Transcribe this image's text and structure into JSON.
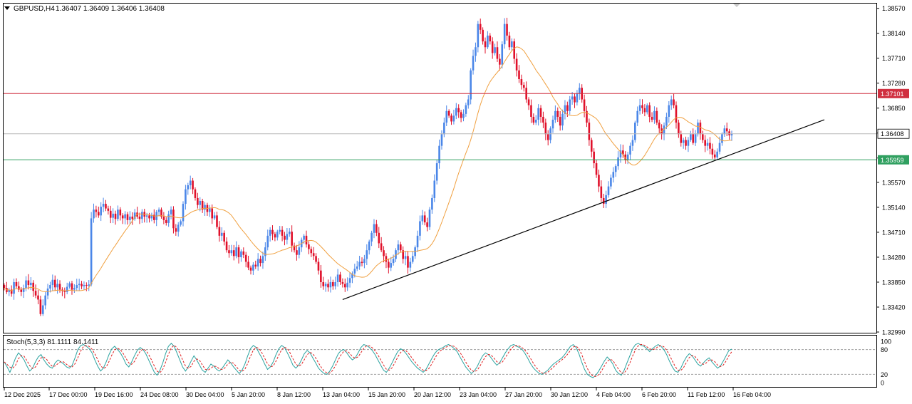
{
  "header": {
    "symbol_label": "GBPUSD,H4",
    "ohlc_text": "1.36407 1.36409 1.36406 1.36408"
  },
  "stoch": {
    "label": "Stoch(5,3,3) 81.1111 84.1411",
    "levels": [
      "100",
      "80",
      "20",
      "0"
    ]
  },
  "colors": {
    "up": "#4a86e8",
    "down": "#e0102a",
    "ma": "#f0a040",
    "resistance": "#d03040",
    "support": "#30a060",
    "current": "#b8b8b8",
    "trendline": "#000000",
    "stoch_main": "#2ba3a0",
    "stoch_signal": "#e02020"
  },
  "chart_data": {
    "type": "candlestick",
    "ylim": [
      1.3299,
      1.3864
    ],
    "y_ticks": [
      "1.38570",
      "1.38140",
      "1.37710",
      "1.37280",
      "1.36850",
      "1.36420",
      "1.35990",
      "1.35570",
      "1.35140",
      "1.34710",
      "1.34280",
      "1.33850",
      "1.33420",
      "1.32990"
    ],
    "x_ticks": [
      "12 Dec 2025",
      "17 Dec 00:00",
      "19 Dec 16:00",
      "24 Dec 08:00",
      "30 Dec 04:00",
      "5 Jan 20:00",
      "8 Jan 12:00",
      "13 Jan 04:00",
      "15 Jan 20:00",
      "20 Jan 12:00",
      "23 Jan 04:00",
      "27 Jan 20:00",
      "30 Jan 12:00",
      "4 Feb 04:00",
      "6 Feb 20:00",
      "11 Feb 12:00",
      "16 Feb 04:00"
    ],
    "horizontal_levels": [
      {
        "kind": "resistance",
        "value": 1.37101,
        "label": "1.37101"
      },
      {
        "kind": "current",
        "value": 1.36408,
        "label": "1.36408"
      },
      {
        "kind": "support",
        "value": 1.35959,
        "label": "1.35959"
      }
    ],
    "trendline": {
      "from": {
        "date": "15 Jan 20:00",
        "price": 1.3355
      },
      "to": {
        "date": "19 Feb",
        "price": 1.3665
      }
    },
    "closes": [
      1.3375,
      1.3368,
      1.3372,
      1.3365,
      1.3385,
      1.3378,
      1.3372,
      1.3368,
      1.3375,
      1.3388,
      1.338,
      1.3384,
      1.337,
      1.3362,
      1.3355,
      1.333,
      1.3345,
      1.3362,
      1.3374,
      1.338,
      1.3389,
      1.3376,
      1.3382,
      1.3372,
      1.337,
      1.3368,
      1.3377,
      1.3383,
      1.3372,
      1.3375,
      1.338,
      1.3382,
      1.3378,
      1.338,
      1.3379,
      1.3381,
      1.3495,
      1.351,
      1.3506,
      1.35,
      1.3515,
      1.352,
      1.3512,
      1.3508,
      1.3496,
      1.3503,
      1.3494,
      1.351,
      1.35,
      1.3495,
      1.3502,
      1.3492,
      1.3498,
      1.3494,
      1.3505,
      1.3498,
      1.3494,
      1.3506,
      1.3498,
      1.35,
      1.3495,
      1.3501,
      1.3492,
      1.3506,
      1.351,
      1.3498,
      1.3492,
      1.3487,
      1.3502,
      1.351,
      1.3478,
      1.3472,
      1.3484,
      1.349,
      1.352,
      1.3545,
      1.3552,
      1.356,
      1.3545,
      1.353,
      1.3518,
      1.3525,
      1.351,
      1.3518,
      1.3506,
      1.3512,
      1.3495,
      1.35,
      1.348,
      1.3465,
      1.347,
      1.3455,
      1.344,
      1.3435,
      1.344,
      1.343,
      1.3445,
      1.3428,
      1.3438,
      1.3432,
      1.342,
      1.341,
      1.3405,
      1.3415,
      1.3412,
      1.3425,
      1.3418,
      1.343,
      1.3445,
      1.3465,
      1.3475,
      1.3468,
      1.3462,
      1.3472,
      1.3475,
      1.3465,
      1.3458,
      1.3468,
      1.3472,
      1.3448,
      1.344,
      1.3432,
      1.3445,
      1.3458,
      1.3465,
      1.345,
      1.3442,
      1.3435,
      1.343,
      1.342,
      1.3405,
      1.3385,
      1.3378,
      1.3382,
      1.3376,
      1.3385,
      1.3378,
      1.3385,
      1.3398,
      1.3385,
      1.3382,
      1.3376,
      1.3384,
      1.3392,
      1.34,
      1.3408,
      1.3412,
      1.342,
      1.3418,
      1.3425,
      1.344,
      1.3455,
      1.347,
      1.3485,
      1.347,
      1.3452,
      1.344,
      1.343,
      1.342,
      1.341,
      1.3418,
      1.3425,
      1.344,
      1.345,
      1.344,
      1.3425,
      1.343,
      1.341,
      1.342,
      1.343,
      1.3445,
      1.3465,
      1.349,
      1.35,
      1.3488,
      1.348,
      1.351,
      1.353,
      1.356,
      1.359,
      1.362,
      1.364,
      1.366,
      1.368,
      1.3672,
      1.3662,
      1.3672,
      1.3685,
      1.3678,
      1.3668,
      1.3675,
      1.369,
      1.37,
      1.375,
      1.3775,
      1.379,
      1.383,
      1.382,
      1.38,
      1.379,
      1.381,
      1.38,
      1.378,
      1.379,
      1.377,
      1.376,
      1.3795,
      1.383,
      1.381,
      1.379,
      1.38,
      1.377,
      1.375,
      1.3735,
      1.3725,
      1.372,
      1.37,
      1.369,
      1.367,
      1.366,
      1.3665,
      1.3685,
      1.367,
      1.366,
      1.364,
      1.363,
      1.365,
      1.3665,
      1.368,
      1.367,
      1.3655,
      1.3675,
      1.369,
      1.368,
      1.37,
      1.3705,
      1.3695,
      1.371,
      1.372,
      1.37,
      1.368,
      1.366,
      1.363,
      1.361,
      1.359,
      1.357,
      1.355,
      1.353,
      1.352,
      1.3535,
      1.355,
      1.3565,
      1.3575,
      1.3585,
      1.36,
      1.3612,
      1.3605,
      1.3595,
      1.3605,
      1.362,
      1.363,
      1.366,
      1.368,
      1.369,
      1.3685,
      1.3678,
      1.369,
      1.367,
      1.3665,
      1.368,
      1.366,
      1.365,
      1.364,
      1.3655,
      1.367,
      1.369,
      1.37,
      1.369,
      1.366,
      1.364,
      1.3625,
      1.363,
      1.362,
      1.363,
      1.364,
      1.3625,
      1.364,
      1.366,
      1.364,
      1.363,
      1.362,
      1.3625,
      1.3615,
      1.3605,
      1.36,
      1.361,
      1.3625,
      1.364,
      1.365,
      1.3645,
      1.3638,
      1.36408
    ],
    "stoch_main": [
      50,
      38,
      25,
      42,
      60,
      72,
      65,
      55,
      40,
      28,
      35,
      50,
      62,
      68,
      55,
      45,
      38,
      35,
      48,
      55,
      50,
      45,
      38,
      35,
      42,
      60,
      80,
      90,
      92,
      88,
      82,
      72,
      55,
      40,
      28,
      35,
      50,
      68,
      82,
      88,
      80,
      72,
      60,
      45,
      38,
      50,
      65,
      78,
      85,
      80,
      70,
      55,
      40,
      25,
      18,
      30,
      48,
      70,
      88,
      95,
      88,
      72,
      55,
      38,
      28,
      38,
      52,
      65,
      55,
      42,
      30,
      25,
      35,
      45,
      40,
      32,
      28,
      35,
      45,
      55,
      48,
      38,
      30,
      22,
      30,
      45,
      65,
      82,
      90,
      85,
      72,
      60,
      45,
      32,
      38,
      50,
      68,
      82,
      90,
      85,
      72,
      58,
      42,
      35,
      42,
      55,
      70,
      78,
      72,
      60,
      48,
      35,
      28,
      22,
      20,
      28,
      40,
      55,
      70,
      78,
      80,
      72,
      62,
      55,
      60,
      72,
      85,
      92,
      90,
      85,
      78,
      68,
      55,
      42,
      30,
      25,
      35,
      48,
      62,
      75,
      82,
      78,
      70,
      60,
      50,
      42,
      35,
      30,
      25,
      32,
      45,
      58,
      70,
      78,
      82,
      85,
      90,
      92,
      88,
      82,
      75,
      62,
      50,
      38,
      30,
      22,
      28,
      38,
      52,
      65,
      72,
      68,
      60,
      50,
      42,
      48,
      60,
      72,
      82,
      90,
      92,
      88,
      85,
      80,
      70,
      58,
      45,
      35,
      28,
      22,
      20,
      25,
      30,
      38,
      45,
      50,
      55,
      60,
      68,
      78,
      88,
      92,
      85,
      70,
      50,
      32,
      20,
      15,
      12,
      18,
      28,
      40,
      52,
      62,
      55,
      45,
      30,
      22,
      18,
      30,
      48,
      65,
      82,
      92,
      95,
      90,
      88,
      82,
      75,
      82,
      88,
      92,
      88,
      80,
      68,
      52,
      38,
      28,
      25,
      35,
      50,
      62,
      70,
      65,
      55,
      45,
      40,
      48,
      55,
      60,
      50,
      42,
      35,
      40,
      52,
      65,
      78,
      81
    ]
  }
}
